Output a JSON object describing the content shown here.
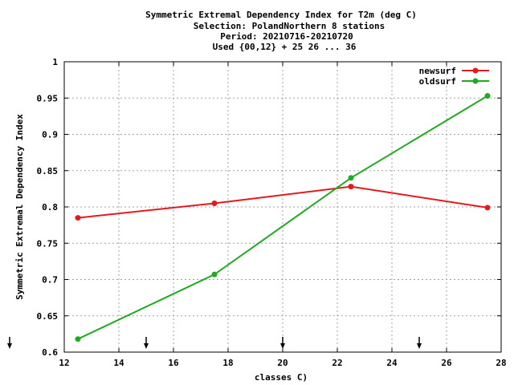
{
  "chart_data": {
    "type": "line",
    "title_lines": [
      "Symmetric Extremal Dependency Index  for T2m (deg C)",
      "Selection: PolandNorthern      8 stations",
      "Period: 20210716-20210720",
      "Used {00,12} + 25 26 ... 36"
    ],
    "xlabel": "classes C)",
    "ylabel": "Symmetric Extremal Dependency Index",
    "xlim": [
      12,
      28
    ],
    "ylim": [
      0.6,
      1.0
    ],
    "x_ticks": [
      "12",
      "14",
      "16",
      "18",
      "20",
      "22",
      "24",
      "26",
      "28"
    ],
    "y_ticks": [
      "0.6",
      "0.65",
      "0.7",
      "0.75",
      "0.8",
      "0.85",
      "0.9",
      "0.95",
      "1"
    ],
    "grid": true,
    "legend_position": "top-right",
    "series": [
      {
        "name": "newsurf",
        "color": "#e41a1c",
        "x": [
          12.5,
          17.5,
          22.5,
          27.5
        ],
        "y": [
          0.785,
          0.805,
          0.828,
          0.799
        ]
      },
      {
        "name": "oldsurf",
        "color": "#1faa1f",
        "x": [
          12.5,
          17.5,
          22.5,
          27.5
        ],
        "y": [
          0.618,
          0.707,
          0.84,
          0.953
        ]
      }
    ],
    "arrow_markers_x": [
      10,
      15,
      20,
      25
    ]
  }
}
